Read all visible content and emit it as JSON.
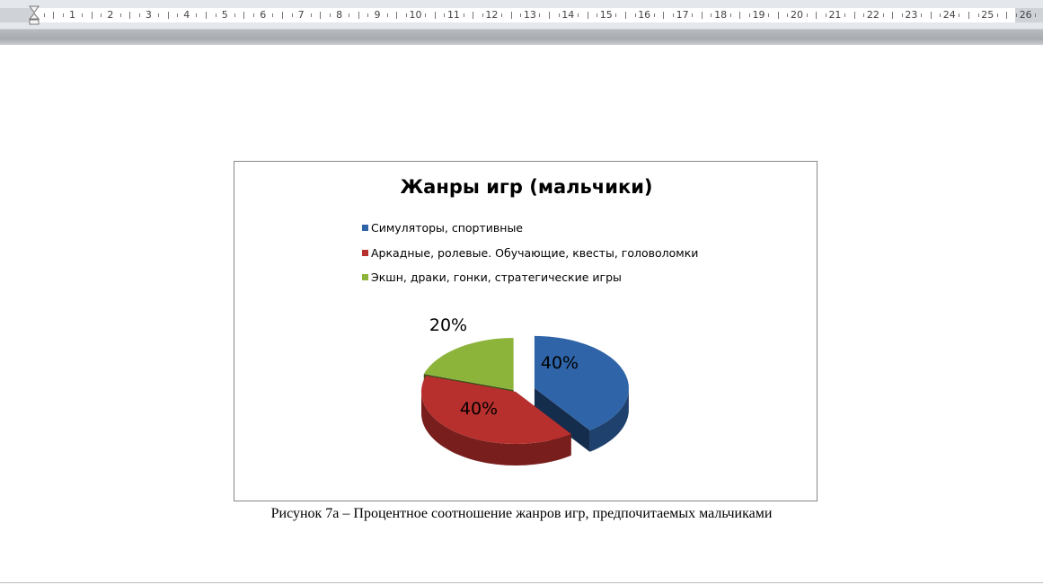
{
  "ruler": {
    "numbers": [
      "1",
      "2",
      "3",
      "4",
      "5",
      "6",
      "7",
      "8",
      "9",
      "10",
      "11",
      "12",
      "13",
      "14",
      "15",
      "16",
      "17",
      "18",
      "19",
      "20",
      "21",
      "22",
      "23",
      "24",
      "25",
      "26"
    ]
  },
  "chart_data": {
    "type": "pie",
    "title": "Жанры игр (мальчики)",
    "legend_position": "top",
    "series": [
      {
        "name": "Симуляторы, спортивные",
        "value": 40,
        "label": "40%",
        "color": "#2f64a8"
      },
      {
        "name": "Аркадные, ролевые. Обучающие, квесты, головоломки",
        "value": 40,
        "label": "40%",
        "color": "#b8302e"
      },
      {
        "name": "Экшн, драки, гонки, стратегические игры",
        "value": 20,
        "label": "20%",
        "color": "#8cb43a"
      }
    ],
    "style": "3d-exploded"
  },
  "caption": "Рисунок 7а – Процентное соотношение жанров игр, предпочитаемых мальчиками"
}
